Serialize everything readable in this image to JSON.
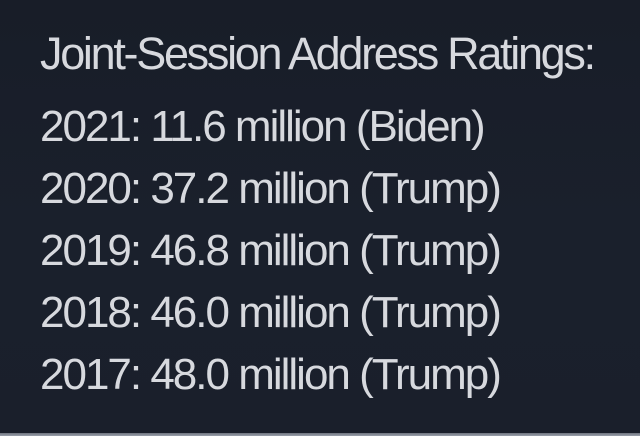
{
  "title": "Joint-Session Address Ratings:",
  "ratings": [
    {
      "year": "2021",
      "viewers_millions": 11.6,
      "president": "Biden",
      "text": "2021: 11.6 million (Biden)"
    },
    {
      "year": "2020",
      "viewers_millions": 37.2,
      "president": "Trump",
      "text": "2020: 37.2 million (Trump)"
    },
    {
      "year": "2019",
      "viewers_millions": 46.8,
      "president": "Trump",
      "text": "2019: 46.8 million (Trump)"
    },
    {
      "year": "2018",
      "viewers_millions": 46.0,
      "president": "Trump",
      "text": "2018: 46.0 million (Trump)"
    },
    {
      "year": "2017",
      "viewers_millions": 48.0,
      "president": "Trump",
      "text": "2017: 48.0 million (Trump)"
    }
  ],
  "colors": {
    "background": "#1a202c",
    "text": "#d7d9de",
    "bottom_border": "#878c97"
  }
}
